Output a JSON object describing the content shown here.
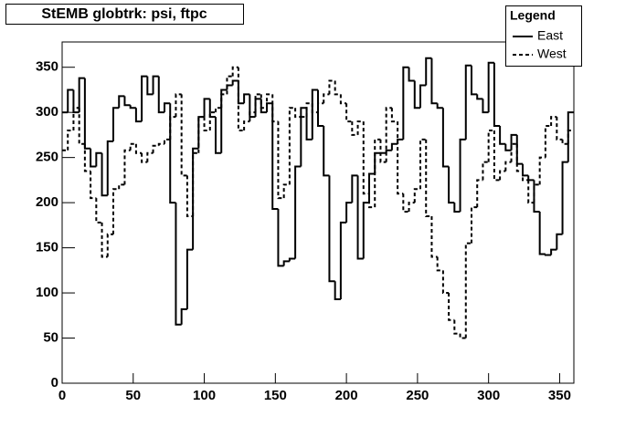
{
  "chart_data": {
    "type": "histogram",
    "title": "StEMB globtrk: psi, ftpc",
    "legend_title": "Legend",
    "legend": "upper right",
    "bins": [
      0,
      4,
      8,
      12,
      16,
      20,
      24,
      28,
      32,
      36,
      40,
      44,
      48,
      52,
      56,
      60,
      64,
      68,
      72,
      76,
      80,
      84,
      88,
      92,
      96,
      100,
      104,
      108,
      112,
      116,
      120,
      124,
      128,
      132,
      136,
      140,
      144,
      148,
      152,
      156,
      160,
      164,
      168,
      172,
      176,
      180,
      184,
      188,
      192,
      196,
      200,
      204,
      208,
      212,
      216,
      220,
      224,
      228,
      232,
      236,
      240,
      244,
      248,
      252,
      256,
      260,
      264,
      268,
      272,
      276,
      280,
      284,
      288,
      292,
      296,
      300,
      304,
      308,
      312,
      316,
      320,
      324,
      328,
      332,
      336,
      340,
      344,
      348,
      352,
      356,
      360
    ],
    "series": [
      {
        "name": "East",
        "color": "#000000",
        "dash": "solid",
        "values": [
          300,
          325,
          300,
          338,
          260,
          240,
          255,
          208,
          268,
          305,
          318,
          308,
          305,
          290,
          340,
          320,
          340,
          300,
          310,
          200,
          65,
          82,
          148,
          260,
          295,
          315,
          295,
          255,
          325,
          330,
          335,
          310,
          320,
          295,
          315,
          300,
          310,
          193,
          130,
          135,
          138,
          240,
          305,
          270,
          325,
          285,
          230,
          113,
          93,
          178,
          200,
          230,
          138,
          200,
          232,
          255,
          255,
          258,
          265,
          270,
          350,
          335,
          305,
          330,
          360,
          310,
          305,
          240,
          200,
          190,
          270,
          352,
          320,
          315,
          300,
          355,
          285,
          265,
          258,
          275,
          243,
          230,
          225,
          190,
          143,
          142,
          148,
          165,
          245,
          300
        ]
      },
      {
        "name": "West",
        "color": "#000000",
        "dash": "dashed",
        "values": [
          258,
          280,
          305,
          265,
          235,
          205,
          178,
          140,
          165,
          215,
          220,
          258,
          265,
          255,
          245,
          255,
          263,
          265,
          270,
          295,
          320,
          230,
          185,
          255,
          295,
          280,
          300,
          305,
          320,
          340,
          350,
          280,
          290,
          300,
          320,
          305,
          320,
          290,
          205,
          220,
          305,
          295,
          295,
          310,
          300,
          310,
          320,
          335,
          320,
          310,
          290,
          275,
          290,
          210,
          195,
          270,
          245,
          305,
          290,
          210,
          190,
          200,
          215,
          270,
          185,
          140,
          125,
          100,
          70,
          55,
          50,
          155,
          195,
          225,
          245,
          280,
          225,
          235,
          245,
          265,
          235,
          225,
          200,
          220,
          250,
          285,
          295,
          270,
          265,
          280
        ]
      }
    ],
    "xlim": [
      0,
      360
    ],
    "ylim": [
      0,
      378
    ],
    "xticks": [
      0,
      50,
      100,
      150,
      200,
      250,
      300,
      350
    ],
    "yticks": [
      0,
      50,
      100,
      150,
      200,
      250,
      300,
      350
    ],
    "grid": false
  }
}
